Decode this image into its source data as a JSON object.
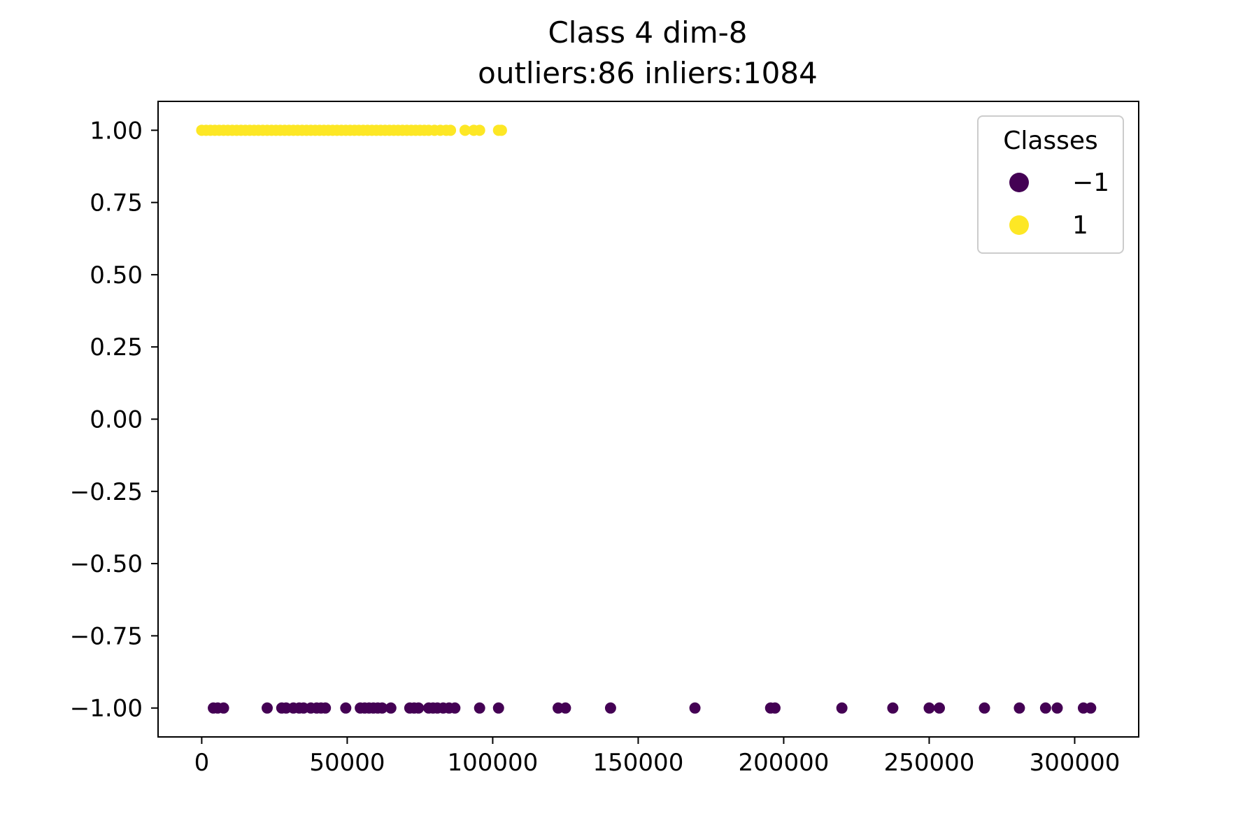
{
  "chart_data": {
    "type": "scatter",
    "title": "Class 4 dim-8",
    "subtitle": "outliers:86  inliers:1084",
    "xlabel": "",
    "ylabel": "",
    "xlim": [
      -15000,
      322000
    ],
    "ylim": [
      -1.1,
      1.1
    ],
    "xticks": [
      0,
      50000,
      100000,
      150000,
      200000,
      250000,
      300000
    ],
    "xtick_labels": [
      "0",
      "50000",
      "100000",
      "150000",
      "200000",
      "250000",
      "300000"
    ],
    "yticks": [
      1.0,
      0.75,
      0.5,
      0.25,
      0.0,
      -0.25,
      -0.5,
      -0.75,
      -1.0
    ],
    "ytick_labels": [
      "1.00",
      "0.75",
      "0.50",
      "0.25",
      "0.00",
      "−0.25",
      "−0.50",
      "−0.75",
      "−1.00"
    ],
    "grid": false,
    "legend": {
      "title": "Classes",
      "placement": "top-right",
      "entries": [
        {
          "label": "−1",
          "color": "#440154"
        },
        {
          "label": "1",
          "color": "#fde725"
        }
      ]
    },
    "series": [
      {
        "class": 1,
        "color": "#fde725",
        "y": 1,
        "x": [
          0,
          1500,
          3000,
          4500,
          6000,
          7500,
          9000,
          10500,
          12000,
          13500,
          15000,
          16500,
          18000,
          19500,
          21000,
          22500,
          24000,
          25500,
          27000,
          28500,
          30000,
          31500,
          33000,
          34500,
          36000,
          37500,
          39000,
          40500,
          42000,
          43500,
          45000,
          46500,
          48000,
          49500,
          51000,
          52500,
          54000,
          55500,
          57000,
          58500,
          60000,
          61500,
          63000,
          64500,
          66000,
          67500,
          69000,
          70500,
          72000,
          73500,
          75000,
          76500,
          78000,
          80000,
          82000,
          84000,
          85500,
          90500,
          93500,
          95500,
          102000,
          103000
        ]
      },
      {
        "class": -1,
        "color": "#440154",
        "y": -1,
        "x": [
          4000,
          5500,
          7500,
          22500,
          27500,
          29000,
          31500,
          33500,
          35000,
          37500,
          39500,
          41000,
          42500,
          49500,
          54500,
          56000,
          57500,
          59000,
          60500,
          62000,
          65000,
          71500,
          73000,
          74500,
          78000,
          79500,
          81000,
          83000,
          85000,
          87000,
          95500,
          102000,
          122500,
          125000,
          140500,
          169500,
          195500,
          197000,
          220000,
          237500,
          250000,
          253500,
          269000,
          281000,
          290000,
          294000,
          303000,
          305500
        ]
      }
    ]
  }
}
